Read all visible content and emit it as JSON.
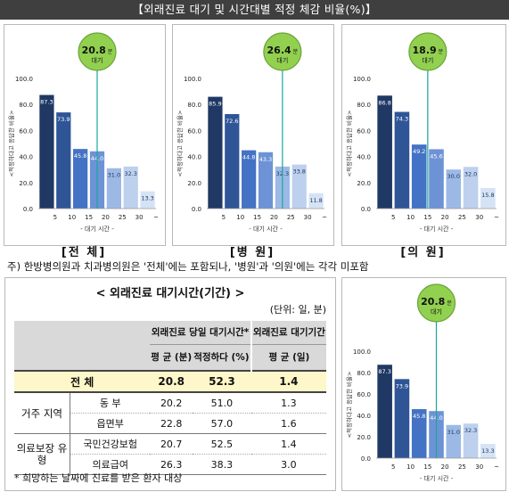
{
  "header": {
    "title": "【외래진료 대기 및 시간대별 적정 체감 비율(%)】"
  },
  "panels": [
    {
      "label": "[전 체]",
      "avg_value": "20.8",
      "avg_unit": "분",
      "avg_sub": "대기"
    },
    {
      "label": "[병 원]",
      "avg_value": "26.4",
      "avg_unit": "분",
      "avg_sub": "대기"
    },
    {
      "label": "[의 원]",
      "avg_value": "18.9",
      "avg_unit": "분",
      "avg_sub": "대기"
    }
  ],
  "footnote_top": "주) 한방병의원과 치과병의원은 '전체'에는 포함되나, '병원'과 '의원'에는 각각 미포함",
  "chart_common": {
    "ylabel": "<적정하다고 응답한 비율>",
    "xlabel": "- 대기 시간 -",
    "yticks": [
      "0.0",
      "20.0",
      "40.0",
      "60.0",
      "80.0",
      "100.0"
    ],
    "xticks": [
      "5",
      "10",
      "15",
      "20",
      "25",
      "30",
      "~"
    ]
  },
  "colors": {
    "bars": [
      "#1f3864",
      "#2f5597",
      "#4472c4",
      "#6d93d6",
      "#9cb9e6",
      "#bdd0ee",
      "#d6e3f5"
    ],
    "callout": "#92d050",
    "line": "#1aa89a"
  },
  "chart_data": [
    {
      "type": "bar",
      "panel": "전체",
      "categories": [
        "5",
        "10",
        "15",
        "20",
        "25",
        "30",
        "~"
      ],
      "values": [
        87.3,
        73.9,
        45.8,
        44.0,
        31.0,
        32.3,
        13.3
      ],
      "ylim": [
        0,
        100
      ],
      "xlabel": "- 대기 시간 -",
      "ylabel": "<적정하다고 응답한 비율>",
      "annotation": "20.8분 대기"
    },
    {
      "type": "bar",
      "panel": "병원",
      "categories": [
        "5",
        "10",
        "15",
        "20",
        "25",
        "30",
        "~"
      ],
      "values": [
        85.9,
        72.6,
        44.8,
        43.3,
        32.3,
        33.8,
        11.8
      ],
      "ylim": [
        0,
        100
      ],
      "xlabel": "- 대기 시간 -",
      "ylabel": "<적정하다고 응답한 비율>",
      "annotation": "26.4분 대기"
    },
    {
      "type": "bar",
      "panel": "의원",
      "categories": [
        "5",
        "10",
        "15",
        "20",
        "25",
        "30",
        "~"
      ],
      "values": [
        86.8,
        74.3,
        49.2,
        45.6,
        30.0,
        32.0,
        15.8
      ],
      "ylim": [
        0,
        100
      ],
      "xlabel": "- 대기 시간 -",
      "ylabel": "<적정하다고 응답한 비율>",
      "annotation": "18.9분 대기"
    },
    {
      "type": "bar",
      "panel": "하단",
      "categories": [
        "5",
        "10",
        "15",
        "20",
        "25",
        "30",
        "~"
      ],
      "values": [
        87.3,
        73.9,
        45.8,
        44.0,
        31.0,
        32.3,
        13.3
      ],
      "ylim": [
        0,
        100
      ],
      "xlabel": "- 대기 시간 -",
      "ylabel": "<적정하다고 응답한 비율>",
      "annotation": "20.8분 대기"
    }
  ],
  "table": {
    "title": "< 외래진료 대기시간(기간) >",
    "unit": "(단위: 일, 분)",
    "group_headers": [
      "외래진료 당일 대기시간*",
      "외래진료 대기기간"
    ],
    "col_headers": [
      "평 균 (분)",
      "적정하다 (%)",
      "평 균 (일)"
    ],
    "total": {
      "label": "전 체",
      "avg": "20.8",
      "ok": "52.3",
      "days": "1.4"
    },
    "groups": [
      {
        "name": "거주 지역",
        "rows": [
          {
            "label": "동 부",
            "avg": "20.2",
            "ok": "51.0",
            "days": "1.3"
          },
          {
            "label": "읍면부",
            "avg": "22.8",
            "ok": "57.0",
            "days": "1.6"
          }
        ]
      },
      {
        "name": "의료보장 유 형",
        "rows": [
          {
            "label": "국민건강보험",
            "avg": "20.7",
            "ok": "52.5",
            "days": "1.4"
          },
          {
            "label": "의료급여",
            "avg": "26.3",
            "ok": "38.3",
            "days": "3.0"
          }
        ]
      }
    ],
    "note": "* 희망하는 날짜에 진료를 받은 환자 대상"
  }
}
